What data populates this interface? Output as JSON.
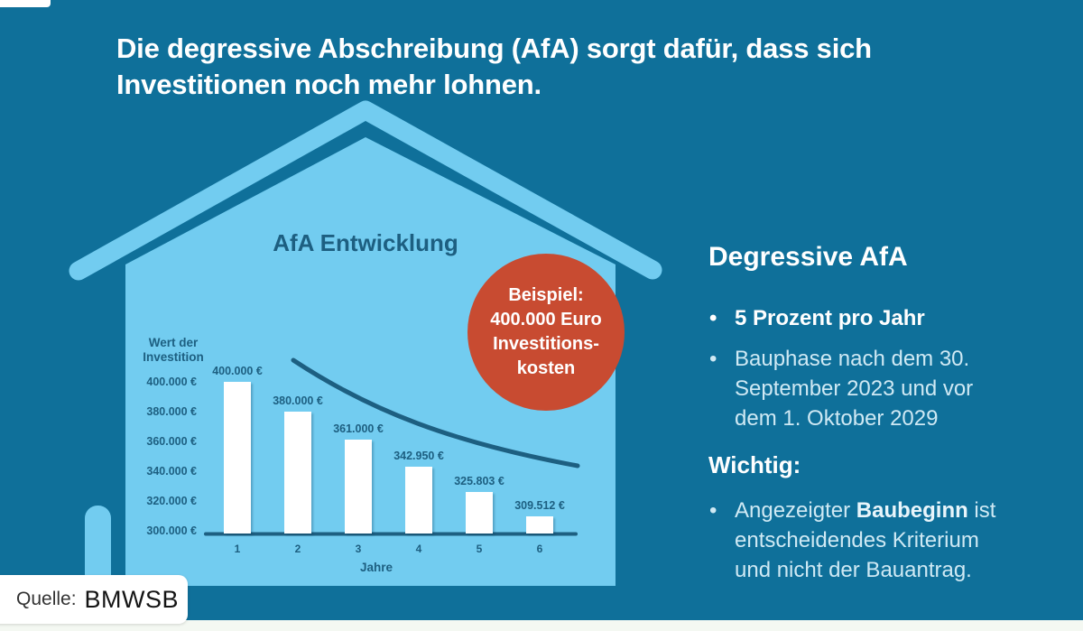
{
  "page": {
    "title": "Die degressive Abschreibung (AfA) sorgt dafür, dass sich\nInvestitionen noch mehr lohnen.",
    "source_label": "Quelle:",
    "source_value": "BMWSB"
  },
  "colors": {
    "background": "#0f709a",
    "house_light_blue": "#72ccf0",
    "chart_dark_blue": "#1d5f81",
    "badge_red": "#c84b31",
    "light_text": "#cfe9f4",
    "footer_strip": "#f4f8f2"
  },
  "badge": {
    "lines": [
      "Beispiel:",
      "400.000 Euro",
      "Investitions-",
      "kosten"
    ]
  },
  "info_panel": {
    "heading": "Degressive AfA",
    "bullet1": "5 Prozent pro Jahr",
    "bullet2": "Bauphase nach dem 30.\nSeptember 2023 und vor\ndem 1. Oktober 2029",
    "subheading": "Wichtig:",
    "bullet3_prefix": "Angezeigter ",
    "bullet3_bold": "Baubeginn",
    "bullet3_suffix": " ist\nentscheidendes Kriterium\nund nicht der Bauantrag.",
    "bullet_glyph": "•"
  },
  "chart_data": {
    "type": "bar",
    "title": "AfA Entwicklung",
    "ylabel": "Wert der\nInvestition",
    "xlabel": "Jahre",
    "categories": [
      "1",
      "2",
      "3",
      "4",
      "5",
      "6"
    ],
    "values": [
      400000,
      380000,
      361000,
      342950,
      325803,
      309512
    ],
    "bar_labels": [
      "400.000 €",
      "380.000 €",
      "361.000 €",
      "342.950 €",
      "325.803 €",
      "309.512 €"
    ],
    "y_tick_labels": [
      "400.000 €",
      "380.000 €",
      "360.000 €",
      "340.000 €",
      "320.000 €",
      "300.000 €"
    ],
    "y_tick_values": [
      400000,
      380000,
      360000,
      340000,
      320000,
      300000
    ],
    "ylim": [
      300000,
      400000
    ],
    "grid": false,
    "legend": false,
    "trend_line": true
  }
}
